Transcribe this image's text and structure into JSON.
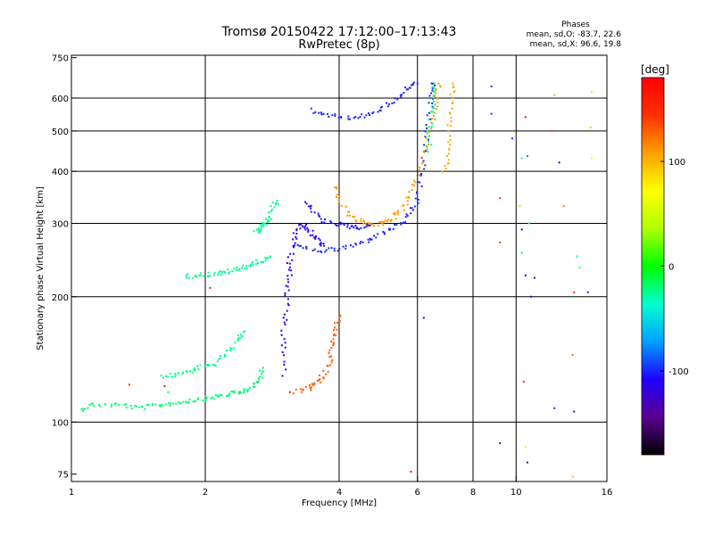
{
  "chart_data": {
    "type": "scatter",
    "title": "Tromsø 20150422 17:12:00–17:13:43",
    "subtitle": "RwPretec (8p)",
    "xlabel": "Frequency [MHz]",
    "ylabel": "Stationary phase Virtual Height [km]",
    "x_scale": "log",
    "y_scale": "log",
    "xlim": [
      1,
      16
    ],
    "ylim": [
      72,
      760
    ],
    "x_ticks": [
      1,
      2,
      4,
      6,
      8,
      10,
      16
    ],
    "x_tick_labels": [
      "1",
      "2",
      "4",
      "6",
      "8",
      "10",
      "16"
    ],
    "y_ticks": [
      75,
      100,
      200,
      300,
      400,
      500,
      600,
      750
    ],
    "y_tick_labels": [
      "75",
      "100",
      "200",
      "300",
      "400",
      "500",
      "600",
      "750"
    ],
    "grid": true,
    "phases_header": "Phases",
    "phases_line1": "mean, sd,O: -83.7, 22.6",
    "phases_line2": "mean, sd,X:  96.6, 19.8",
    "colorbar": {
      "label": "[deg]",
      "range": [
        -180,
        180
      ],
      "ticks": [
        -100,
        0,
        100
      ],
      "tick_labels": [
        "-100",
        "0",
        "100"
      ],
      "colormap": [
        "#000000",
        "#5a0090",
        "#2000ff",
        "#00a0ff",
        "#00ffd0",
        "#00ff00",
        "#b0ff00",
        "#ffff00",
        "#ffa000",
        "#ff3000",
        "#ff0000"
      ]
    },
    "traces": [
      {
        "name": "",
        "phase": -20,
        "points": [
          [
            1.05,
            107
          ],
          [
            1.1,
            110
          ],
          [
            1.2,
            110
          ],
          [
            1.3,
            110
          ],
          [
            1.4,
            108
          ],
          [
            1.5,
            109
          ],
          [
            1.6,
            110
          ],
          [
            1.7,
            111
          ],
          [
            1.8,
            112
          ],
          [
            1.9,
            113
          ],
          [
            2.0,
            114
          ],
          [
            2.1,
            115
          ],
          [
            2.2,
            116
          ],
          [
            2.3,
            117
          ],
          [
            2.4,
            118
          ],
          [
            2.5,
            120
          ],
          [
            2.6,
            123
          ],
          [
            2.65,
            128
          ],
          [
            2.7,
            135
          ]
        ]
      },
      {
        "name": "",
        "phase": -25,
        "points": [
          [
            1.8,
            224
          ],
          [
            1.9,
            225
          ],
          [
            2.0,
            226
          ],
          [
            2.1,
            227
          ],
          [
            2.2,
            228
          ],
          [
            2.3,
            231
          ],
          [
            2.4,
            234
          ],
          [
            2.5,
            238
          ],
          [
            2.6,
            241
          ],
          [
            2.7,
            245
          ],
          [
            2.8,
            250
          ]
        ]
      },
      {
        "name": "",
        "phase": -25,
        "points": [
          [
            2.6,
            285
          ],
          [
            2.65,
            290
          ],
          [
            2.7,
            296
          ],
          [
            2.75,
            300
          ],
          [
            2.8,
            310
          ],
          [
            2.85,
            330
          ],
          [
            2.9,
            340
          ]
        ]
      },
      {
        "name": "",
        "phase": -25,
        "points": [
          [
            1.6,
            128
          ],
          [
            1.7,
            130
          ],
          [
            1.8,
            132
          ],
          [
            1.9,
            134
          ],
          [
            2.0,
            136
          ],
          [
            2.1,
            138
          ],
          [
            2.2,
            145
          ],
          [
            2.3,
            150
          ],
          [
            2.4,
            160
          ],
          [
            2.45,
            165
          ]
        ]
      },
      {
        "name": "",
        "phase": -110,
        "points": [
          [
            3.0,
            130
          ],
          [
            3.0,
            150
          ],
          [
            3.0,
            170
          ],
          [
            3.05,
            190
          ],
          [
            3.05,
            210
          ],
          [
            3.1,
            230
          ],
          [
            3.1,
            250
          ],
          [
            3.15,
            270
          ],
          [
            3.2,
            290
          ],
          [
            3.3,
            300
          ],
          [
            3.4,
            290
          ],
          [
            3.5,
            280
          ],
          [
            3.6,
            270
          ],
          [
            3.7,
            265
          ]
        ]
      },
      {
        "name": "",
        "phase": -100,
        "points": [
          [
            3.2,
            265
          ],
          [
            3.4,
            260
          ],
          [
            3.7,
            258
          ],
          [
            4.0,
            260
          ],
          [
            4.3,
            265
          ],
          [
            4.6,
            272
          ],
          [
            4.9,
            280
          ],
          [
            5.2,
            290
          ],
          [
            5.5,
            300
          ],
          [
            5.8,
            315
          ],
          [
            6.0,
            340
          ],
          [
            6.1,
            380
          ],
          [
            6.2,
            430
          ],
          [
            6.3,
            500
          ],
          [
            6.4,
            560
          ],
          [
            6.45,
            620
          ],
          [
            6.5,
            650
          ]
        ]
      },
      {
        "name": "",
        "phase": -105,
        "points": [
          [
            3.4,
            340
          ],
          [
            3.5,
            320
          ],
          [
            3.7,
            305
          ],
          [
            3.9,
            300
          ],
          [
            4.1,
            296
          ],
          [
            4.3,
            294
          ],
          [
            4.5,
            294
          ],
          [
            4.7,
            297
          ]
        ]
      },
      {
        "name": "",
        "phase": -100,
        "points": [
          [
            3.5,
            560
          ],
          [
            3.7,
            550
          ],
          [
            4.0,
            540
          ],
          [
            4.3,
            538
          ],
          [
            4.6,
            545
          ],
          [
            4.9,
            560
          ],
          [
            5.2,
            580
          ],
          [
            5.5,
            610
          ],
          [
            5.8,
            640
          ],
          [
            6.0,
            650
          ]
        ]
      },
      {
        "name": "",
        "phase": 110,
        "points": [
          [
            3.9,
            370
          ],
          [
            4.0,
            340
          ],
          [
            4.2,
            315
          ],
          [
            4.4,
            305
          ],
          [
            4.6,
            300
          ],
          [
            4.8,
            298
          ],
          [
            5.0,
            300
          ],
          [
            5.2,
            305
          ],
          [
            5.4,
            315
          ],
          [
            5.6,
            330
          ],
          [
            5.8,
            355
          ],
          [
            6.0,
            390
          ],
          [
            6.2,
            440
          ],
          [
            6.4,
            500
          ],
          [
            6.55,
            560
          ],
          [
            6.65,
            610
          ],
          [
            6.7,
            650
          ]
        ]
      },
      {
        "name": "",
        "phase": 130,
        "points": [
          [
            3.2,
            118
          ],
          [
            3.4,
            120
          ],
          [
            3.5,
            122
          ],
          [
            3.6,
            126
          ],
          [
            3.7,
            130
          ],
          [
            3.8,
            140
          ],
          [
            3.85,
            150
          ],
          [
            3.9,
            160
          ],
          [
            3.95,
            170
          ],
          [
            4.0,
            180
          ]
        ]
      },
      {
        "name": "",
        "phase": 105,
        "points": [
          [
            6.9,
            400
          ],
          [
            7.0,
            430
          ],
          [
            7.05,
            480
          ],
          [
            7.1,
            540
          ],
          [
            7.15,
            600
          ],
          [
            7.2,
            650
          ]
        ]
      },
      {
        "name": "",
        "phase": -20,
        "points": [
          [
            6.35,
            450
          ],
          [
            6.4,
            500
          ],
          [
            6.45,
            550
          ],
          [
            6.5,
            600
          ],
          [
            6.55,
            650
          ]
        ]
      }
    ],
    "scatter_points": [
      {
        "x": 8.8,
        "y": 640,
        "phase": -100
      },
      {
        "x": 8.8,
        "y": 550,
        "phase": -100
      },
      {
        "x": 9.8,
        "y": 480,
        "phase": -100
      },
      {
        "x": 10.5,
        "y": 540,
        "phase": 170
      },
      {
        "x": 10.3,
        "y": 430,
        "phase": -40
      },
      {
        "x": 10.6,
        "y": 435,
        "phase": -80
      },
      {
        "x": 12.5,
        "y": 420,
        "phase": -110
      },
      {
        "x": 12.0,
        "y": 500,
        "phase": 140
      },
      {
        "x": 12.2,
        "y": 610,
        "phase": 20
      },
      {
        "x": 14.8,
        "y": 620,
        "phase": 40
      },
      {
        "x": 14.7,
        "y": 510,
        "phase": 30
      },
      {
        "x": 14.8,
        "y": 430,
        "phase": 80
      },
      {
        "x": 9.2,
        "y": 345,
        "phase": 160
      },
      {
        "x": 10.2,
        "y": 330,
        "phase": 90
      },
      {
        "x": 12.8,
        "y": 330,
        "phase": 120
      },
      {
        "x": 10.3,
        "y": 290,
        "phase": -110
      },
      {
        "x": 10.7,
        "y": 300,
        "phase": -30
      },
      {
        "x": 9.2,
        "y": 270,
        "phase": 140
      },
      {
        "x": 10.3,
        "y": 255,
        "phase": -50
      },
      {
        "x": 10.5,
        "y": 225,
        "phase": -110
      },
      {
        "x": 11.0,
        "y": 222,
        "phase": -110
      },
      {
        "x": 10.8,
        "y": 200,
        "phase": -120
      },
      {
        "x": 13.7,
        "y": 250,
        "phase": -40
      },
      {
        "x": 13.9,
        "y": 235,
        "phase": 20
      },
      {
        "x": 13.5,
        "y": 205,
        "phase": 150
      },
      {
        "x": 14.5,
        "y": 205,
        "phase": -100
      },
      {
        "x": 6.2,
        "y": 178,
        "phase": -110
      },
      {
        "x": 13.4,
        "y": 145,
        "phase": 130
      },
      {
        "x": 10.4,
        "y": 125,
        "phase": 150
      },
      {
        "x": 12.2,
        "y": 108,
        "phase": -100
      },
      {
        "x": 13.5,
        "y": 106,
        "phase": -140
      },
      {
        "x": 9.2,
        "y": 89,
        "phase": -110
      },
      {
        "x": 10.5,
        "y": 87,
        "phase": 60
      },
      {
        "x": 10.6,
        "y": 80,
        "phase": -130
      },
      {
        "x": 5.8,
        "y": 76,
        "phase": 170
      },
      {
        "x": 13.4,
        "y": 74,
        "phase": 100
      },
      {
        "x": 2.05,
        "y": 210,
        "phase": 160
      },
      {
        "x": 1.35,
        "y": 123,
        "phase": 150
      },
      {
        "x": 1.62,
        "y": 122,
        "phase": 150
      },
      {
        "x": 1.65,
        "y": 118,
        "phase": -10
      },
      {
        "x": 3.1,
        "y": 118,
        "phase": 170
      }
    ]
  }
}
